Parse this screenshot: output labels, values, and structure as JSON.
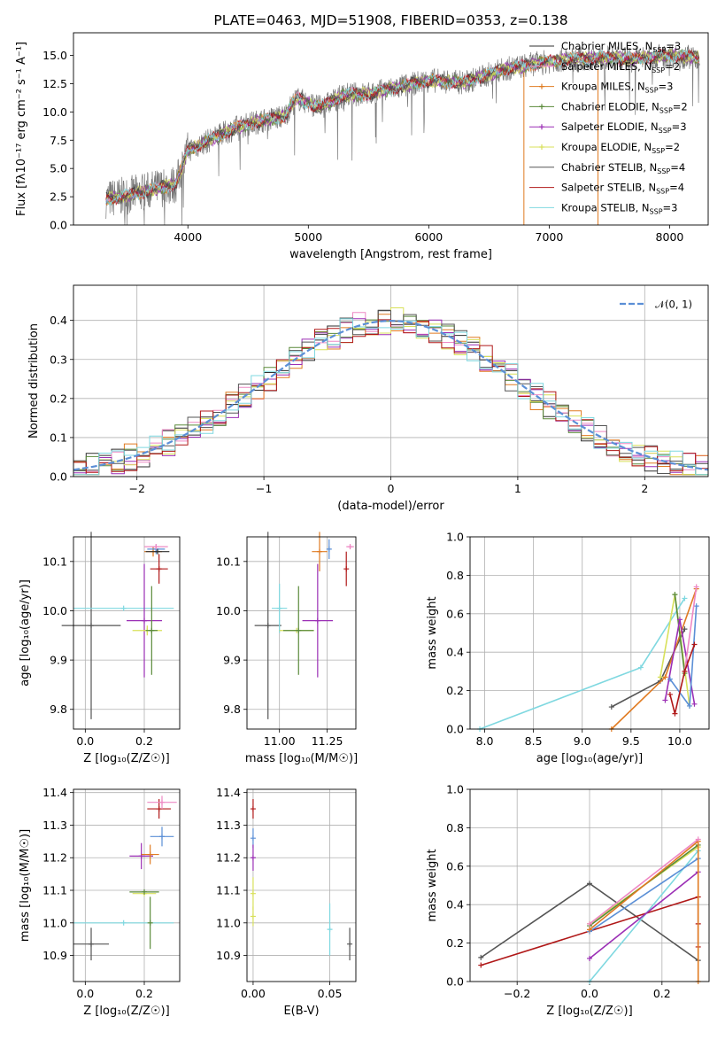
{
  "chart_data": [
    {
      "id": "spectrum",
      "type": "line",
      "title": "PLATE=0463, MJD=51908, FIBERID=0353, z=0.138",
      "xlabel": "wavelength [Angstrom, rest frame]",
      "ylabel": "Flux [f$_\\lambda$10$^{-17}$ erg cm$^{-2}$ s$^{-1}$ A$^{-1}$]",
      "ylabel_text": "Flux [fλ10⁻¹⁷ erg cm⁻² s⁻¹ A⁻¹]",
      "xlim": [
        3050,
        8320
      ],
      "ylim": [
        0,
        17
      ],
      "xticks": [
        4000,
        5000,
        6000,
        7000,
        8000
      ],
      "yticks": [
        0.0,
        2.5,
        5.0,
        7.5,
        10.0,
        12.5,
        15.0
      ],
      "data_range": [
        3320,
        8250
      ],
      "data_curve": [
        [
          3320,
          2.3
        ],
        [
          3500,
          2.6
        ],
        [
          3700,
          3.1
        ],
        [
          3900,
          3.6
        ],
        [
          4000,
          6.6
        ],
        [
          4200,
          7.6
        ],
        [
          4400,
          8.6
        ],
        [
          4600,
          9.2
        ],
        [
          4800,
          9.6
        ],
        [
          4900,
          11.2
        ],
        [
          5100,
          10.4
        ],
        [
          5300,
          11.5
        ],
        [
          5500,
          11.6
        ],
        [
          5800,
          12.3
        ],
        [
          6000,
          12.8
        ],
        [
          6300,
          12.6
        ],
        [
          6600,
          13.7
        ],
        [
          6900,
          14.3
        ],
        [
          7100,
          14.6
        ],
        [
          7400,
          14.8
        ],
        [
          7700,
          14.7
        ],
        [
          8000,
          15.0
        ],
        [
          8250,
          14.8
        ]
      ],
      "spikes": [
        [
          6800,
          0
        ],
        [
          7400,
          0
        ],
        [
          7255,
          16.6
        ],
        [
          7540,
          17.0
        ]
      ],
      "legend_position": "upper-right",
      "series": [
        {
          "name": "Chabrier MILES, N$_{SSP}$=3",
          "label": "Chabrier MILES, N",
          "sub": "SSP",
          "suffix": "=3",
          "color": "#2f2f2f",
          "marker": "none"
        },
        {
          "name": "Salpeter MILES, N$_{SSP}$=2",
          "label": "Salpeter MILES, N",
          "sub": "SSP",
          "suffix": "=2",
          "color": "#ee88c4",
          "marker": "none"
        },
        {
          "name": "Kroupa MILES, N$_{SSP}$=3",
          "label": "Kroupa MILES, N",
          "sub": "SSP",
          "suffix": "=3",
          "color": "#e07b22",
          "marker": "plus"
        },
        {
          "name": "Chabrier ELODIE, N$_{SSP}$=2",
          "label": "Chabrier ELODIE, N",
          "sub": "SSP",
          "suffix": "=2",
          "color": "#5a8a3a",
          "marker": "plus"
        },
        {
          "name": "Salpeter ELODIE, N$_{SSP}$=3",
          "label": "Salpeter ELODIE, N",
          "sub": "SSP",
          "suffix": "=3",
          "color": "#9b2fb5",
          "marker": "plus"
        },
        {
          "name": "Kroupa ELODIE, N$_{SSP}$=2",
          "label": "Kroupa ELODIE, N",
          "sub": "SSP",
          "suffix": "=2",
          "color": "#d8e05a",
          "marker": "plus"
        },
        {
          "name": "Chabrier STELIB, N$_{SSP}$=4",
          "label": "Chabrier STELIB, N",
          "sub": "SSP",
          "suffix": "=4",
          "color": "#555555",
          "marker": "none"
        },
        {
          "name": "Salpeter STELIB, N$_{SSP}$=4",
          "label": "Salpeter STELIB, N",
          "sub": "SSP",
          "suffix": "=4",
          "color": "#b01818",
          "marker": "none"
        },
        {
          "name": "Kroupa STELIB, N$_{SSP}$=3",
          "label": "Kroupa STELIB, N",
          "sub": "SSP",
          "suffix": "=3",
          "color": "#7fd8e0",
          "marker": "none"
        }
      ]
    },
    {
      "id": "residuals",
      "type": "bar",
      "xlabel": "(data-model)/error",
      "ylabel": "Normed distribution",
      "xlim": [
        -2.5,
        2.5
      ],
      "ylim": [
        0,
        0.49
      ],
      "xticks": [
        -2,
        -1,
        0,
        1,
        2
      ],
      "xtick_labels": [
        "−2",
        "−1",
        "0",
        "1",
        "2"
      ],
      "yticks": [
        0.0,
        0.1,
        0.2,
        0.3,
        0.4
      ],
      "grid": true,
      "bin_width": 0.1,
      "model_curve": {
        "name": "$\\mathcal{N}(0,1)$",
        "label": "𝒩(0, 1)",
        "color": "#5b8fd6",
        "style": "dashed"
      },
      "legend_position": "upper-right",
      "hist_colors": [
        "#2f2f2f",
        "#ee88c4",
        "#e07b22",
        "#5a8a3a",
        "#9b2fb5",
        "#d8e05a",
        "#555555",
        "#b01818",
        "#7fd8e0"
      ],
      "hist_noise_amplitude": 0.035
    },
    {
      "id": "age_vs_Z",
      "type": "scatter",
      "xlabel": "Z [log$_{10}$(Z/Z$_\\odot$)]",
      "xlabel_text": "Z [log₁₀(Z/Z☉)]",
      "ylabel": "age  [log$_{10}$(age/yr)]",
      "ylabel_text": "age  [log₁₀(age/yr)]",
      "xlim": [
        -0.04,
        0.32
      ],
      "ylim": [
        9.76,
        10.15
      ],
      "xticks": [
        0.0,
        0.2
      ],
      "yticks": [
        9.8,
        9.9,
        10.0,
        10.1
      ],
      "grid": true,
      "points": [
        {
          "x": 0.02,
          "y": 9.97,
          "xerr": 0.1,
          "yerr": 0.19,
          "color": "#555555"
        },
        {
          "x": 0.13,
          "y": 10.005,
          "xerr": 0.17,
          "yerr": 0.0,
          "color": "#7fd8e0"
        },
        {
          "x": 0.2,
          "y": 9.98,
          "xerr": 0.06,
          "yerr": 0.115,
          "color": "#9b2fb5"
        },
        {
          "x": 0.21,
          "y": 9.96,
          "xerr": 0.05,
          "yerr": 0.01,
          "color": "#d8e05a"
        },
        {
          "x": 0.225,
          "y": 9.96,
          "xerr": 0.02,
          "yerr": 0.09,
          "color": "#5a8a3a"
        },
        {
          "x": 0.23,
          "y": 10.12,
          "xerr": 0.03,
          "yerr": 0.01,
          "color": "#e07b22"
        },
        {
          "x": 0.24,
          "y": 10.125,
          "xerr": 0.03,
          "yerr": 0.01,
          "color": "#5b8fd6"
        },
        {
          "x": 0.24,
          "y": 10.13,
          "xerr": 0.04,
          "yerr": 0.005,
          "color": "#ee88c4"
        },
        {
          "x": 0.245,
          "y": 10.12,
          "xerr": 0.04,
          "yerr": 0.003,
          "color": "#2f2f2f"
        },
        {
          "x": 0.25,
          "y": 10.085,
          "xerr": 0.03,
          "yerr": 0.03,
          "color": "#b01818"
        }
      ]
    },
    {
      "id": "age_vs_mass",
      "type": "scatter",
      "xlabel": "mass [log$_{10}$(M/M$_\\odot$)]",
      "xlabel_text": "mass [log₁₀(M/M☉)]",
      "ylabel": "",
      "xlim": [
        10.83,
        11.4
      ],
      "ylim": [
        9.76,
        10.15
      ],
      "xticks": [
        11.0,
        11.25
      ],
      "xtick_labels": [
        "11.00",
        "11.25"
      ],
      "yticks": [
        9.8,
        9.9,
        10.0,
        10.1
      ],
      "grid": true,
      "points": [
        {
          "x": 10.94,
          "y": 9.97,
          "xerr": 0.07,
          "yerr": 0.19,
          "color": "#555555"
        },
        {
          "x": 11.0,
          "y": 10.005,
          "xerr": 0.04,
          "yerr": 0.05,
          "color": "#7fd8e0"
        },
        {
          "x": 11.09,
          "y": 9.96,
          "xerr": 0.09,
          "yerr": 0.0,
          "color": "#d8e05a"
        },
        {
          "x": 11.1,
          "y": 9.96,
          "xerr": 0.08,
          "yerr": 0.09,
          "color": "#5a8a3a"
        },
        {
          "x": 11.2,
          "y": 9.98,
          "xerr": 0.08,
          "yerr": 0.115,
          "color": "#9b2fb5"
        },
        {
          "x": 11.21,
          "y": 10.12,
          "xerr": 0.04,
          "yerr": 0.04,
          "color": "#e07b22"
        },
        {
          "x": 11.26,
          "y": 10.125,
          "xerr": 0.0,
          "yerr": 0.02,
          "color": "#5b8fd6"
        },
        {
          "x": 11.35,
          "y": 10.085,
          "xerr": 0.0,
          "yerr": 0.035,
          "color": "#b01818"
        },
        {
          "x": 11.37,
          "y": 10.13,
          "xerr": 0.02,
          "yerr": 0.005,
          "color": "#ee88c4"
        }
      ]
    },
    {
      "id": "massweight_vs_age",
      "type": "line",
      "xlabel": "age  [log$_{10}$(age/yr)]",
      "xlabel_text": "age  [log₁₀(age/yr)]",
      "ylabel": "mass weight",
      "xlim": [
        7.85,
        10.3
      ],
      "ylim": [
        0,
        1.0
      ],
      "xticks": [
        8.0,
        8.5,
        9.0,
        9.5,
        10.0
      ],
      "yticks": [
        0.0,
        0.2,
        0.4,
        0.6,
        0.8,
        1.0
      ],
      "grid": true,
      "series": [
        {
          "color": "#7fd8e0",
          "x": [
            7.95,
            9.6,
            10.05
          ],
          "y": [
            0.0,
            0.32,
            0.68
          ]
        },
        {
          "color": "#555555",
          "x": [
            9.3,
            9.8,
            10.05
          ],
          "y": [
            0.115,
            0.25,
            0.52
          ]
        },
        {
          "color": "#e07b22",
          "x": [
            9.3,
            9.85,
            10.17
          ],
          "y": [
            0.0,
            0.27,
            0.73
          ]
        },
        {
          "color": "#d8e05a",
          "x": [
            9.8,
            9.95,
            10.1
          ],
          "y": [
            0.27,
            0.7,
            0.12
          ]
        },
        {
          "color": "#5a8a3a",
          "x": [
            9.95,
            10.05
          ],
          "y": [
            0.7,
            0.29
          ]
        },
        {
          "color": "#9b2fb5",
          "x": [
            9.85,
            10.0,
            10.15
          ],
          "y": [
            0.15,
            0.57,
            0.13
          ]
        },
        {
          "color": "#5b8fd6",
          "x": [
            9.9,
            10.1,
            10.17
          ],
          "y": [
            0.26,
            0.12,
            0.64
          ]
        },
        {
          "color": "#ee88c4",
          "x": [
            10.05,
            10.17
          ],
          "y": [
            0.3,
            0.74
          ]
        },
        {
          "color": "#b01818",
          "x": [
            9.9,
            9.95,
            10.05,
            10.15
          ],
          "y": [
            0.18,
            0.08,
            0.3,
            0.44
          ]
        }
      ]
    },
    {
      "id": "mass_vs_Z",
      "type": "scatter",
      "xlabel": "Z [log$_{10}$(Z/Z$_\\odot$)]",
      "xlabel_text": "Z [log₁₀(Z/Z☉)]",
      "ylabel": "mass [log$_{10}$(M/M$_\\odot$)]",
      "ylabel_text": "mass [log₁₀(M/M☉)]",
      "xlim": [
        -0.04,
        0.32
      ],
      "ylim": [
        10.82,
        11.41
      ],
      "xticks": [
        0.0,
        0.2
      ],
      "yticks": [
        10.9,
        11.0,
        11.1,
        11.2,
        11.3,
        11.4
      ],
      "grid": true,
      "points": [
        {
          "x": 0.02,
          "y": 10.935,
          "xerr": 0.06,
          "yerr": 0.05,
          "color": "#555555"
        },
        {
          "x": 0.13,
          "y": 11.0,
          "xerr": 0.17,
          "yerr": 0.0,
          "color": "#7fd8e0"
        },
        {
          "x": 0.2,
          "y": 11.09,
          "xerr": 0.04,
          "yerr": 0.0,
          "color": "#d8e05a"
        },
        {
          "x": 0.2,
          "y": 11.095,
          "xerr": 0.05,
          "yerr": 0.0,
          "color": "#5a8a3a"
        },
        {
          "x": 0.19,
          "y": 11.205,
          "xerr": 0.04,
          "yerr": 0.04,
          "color": "#9b2fb5"
        },
        {
          "x": 0.22,
          "y": 11.21,
          "xerr": 0.03,
          "yerr": 0.03,
          "color": "#e07b22"
        },
        {
          "x": 0.26,
          "y": 11.265,
          "xerr": 0.04,
          "yerr": 0.03,
          "color": "#5b8fd6"
        },
        {
          "x": 0.25,
          "y": 11.35,
          "xerr": 0.04,
          "yerr": 0.03,
          "color": "#b01818"
        },
        {
          "x": 0.26,
          "y": 11.37,
          "xerr": 0.05,
          "yerr": 0.02,
          "color": "#ee88c4"
        },
        {
          "x": 0.22,
          "y": 11.0,
          "xerr": 0.0,
          "yerr": 0.08,
          "color": "#5a8a3a"
        }
      ]
    },
    {
      "id": "mass_vs_ebv",
      "type": "scatter",
      "xlabel": "E(B-V)",
      "ylabel": "",
      "xlim": [
        -0.004,
        0.067
      ],
      "ylim": [
        10.82,
        11.41
      ],
      "xticks": [
        0.0,
        0.05
      ],
      "xtick_labels": [
        "0.00",
        "0.05"
      ],
      "yticks": [
        10.9,
        11.0,
        11.1,
        11.2,
        11.3,
        11.4
      ],
      "grid": true,
      "points": [
        {
          "x": 0.0,
          "y": 11.35,
          "xerr": 0.0,
          "yerr": 0.03,
          "color": "#b01818"
        },
        {
          "x": 0.0,
          "y": 11.26,
          "xerr": 0.0,
          "yerr": 0.03,
          "color": "#5b8fd6"
        },
        {
          "x": 0.0,
          "y": 11.2,
          "xerr": 0.0,
          "yerr": 0.04,
          "color": "#9b2fb5"
        },
        {
          "x": 0.0,
          "y": 11.09,
          "xerr": 0.0,
          "yerr": 0.05,
          "color": "#d8e05a"
        },
        {
          "x": 0.0,
          "y": 11.02,
          "xerr": 0.0,
          "yerr": 0.03,
          "color": "#d8e05a"
        },
        {
          "x": 0.05,
          "y": 10.98,
          "xerr": 0.0,
          "yerr": 0.08,
          "color": "#7fd8e0"
        },
        {
          "x": 0.063,
          "y": 10.935,
          "xerr": 0.0,
          "yerr": 0.05,
          "color": "#555555"
        }
      ]
    },
    {
      "id": "massweight_vs_Z",
      "type": "line",
      "xlabel": "Z [log$_{10}$(Z/Z$_\\odot$)]",
      "xlabel_text": "Z [log₁₀(Z/Z☉)]",
      "ylabel": "mass weight",
      "xlim": [
        -0.33,
        0.33
      ],
      "ylim": [
        0,
        1.0
      ],
      "xticks": [
        -0.2,
        0.0,
        0.2
      ],
      "xtick_labels": [
        "−0.2",
        "0.0",
        "0.2"
      ],
      "yticks": [
        0.0,
        0.2,
        0.4,
        0.6,
        0.8,
        1.0
      ],
      "grid": true,
      "series": [
        {
          "color": "#555555",
          "x": [
            -0.3,
            0.0,
            0.3
          ],
          "y": [
            0.125,
            0.51,
            0.11
          ]
        },
        {
          "color": "#b01818",
          "x": [
            -0.3,
            0.3,
            0.3,
            0.3
          ],
          "y": [
            0.085,
            0.44,
            0.3,
            0.18
          ]
        },
        {
          "color": "#7fd8e0",
          "x": [
            0.0,
            0.3
          ],
          "y": [
            0.0,
            0.68
          ]
        },
        {
          "color": "#9b2fb5",
          "x": [
            0.0,
            0.3
          ],
          "y": [
            0.12,
            0.57
          ]
        },
        {
          "color": "#5b8fd6",
          "x": [
            0.0,
            0.3
          ],
          "y": [
            0.26,
            0.64
          ]
        },
        {
          "color": "#d8e05a",
          "x": [
            0.0,
            0.3
          ],
          "y": [
            0.3,
            0.7
          ]
        },
        {
          "color": "#5a8a3a",
          "x": [
            0.0,
            0.3
          ],
          "y": [
            0.29,
            0.71
          ]
        },
        {
          "color": "#e07b22",
          "x": [
            0.0,
            0.3,
            0.3
          ],
          "y": [
            0.27,
            0.73,
            0.0
          ]
        },
        {
          "color": "#ee88c4",
          "x": [
            0.0,
            0.3
          ],
          "y": [
            0.3,
            0.74
          ]
        }
      ]
    }
  ]
}
